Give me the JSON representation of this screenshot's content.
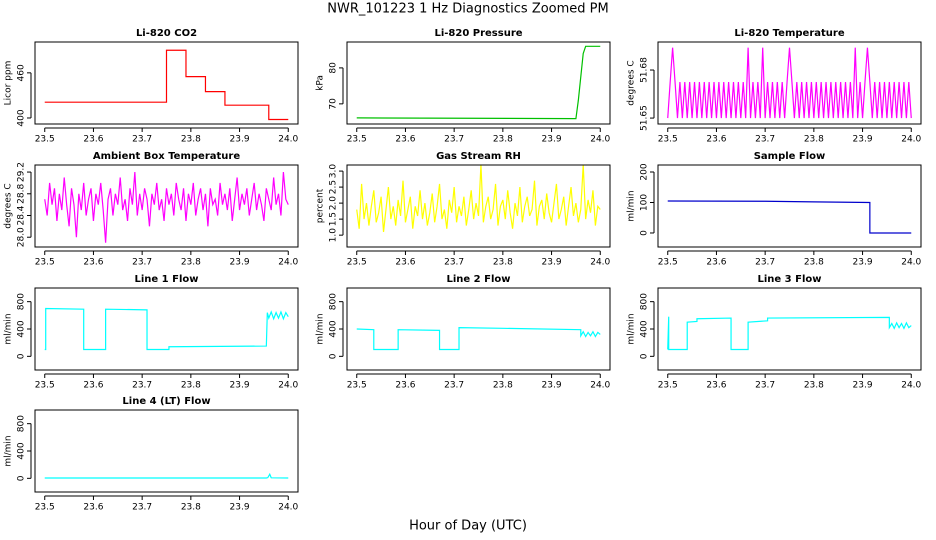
{
  "title": "NWR_101223  1 Hz Diagnostics Zoomed PM",
  "xlabel": "Hour of Day (UTC)",
  "chart_data": [
    {
      "type": "line",
      "title": "Li-820 CO2",
      "ylabel": "Licor ppm",
      "color": "#ff0000",
      "x": [
        23.5,
        23.75,
        23.75,
        23.79,
        23.79,
        23.83,
        23.83,
        23.87,
        23.87,
        23.96,
        23.96,
        24.0
      ],
      "values": [
        421,
        421,
        490,
        490,
        455,
        455,
        435,
        435,
        417,
        417,
        398,
        398
      ],
      "xlim": [
        23.48,
        24.02
      ],
      "ylim": [
        392,
        501
      ],
      "xticks": [
        23.5,
        23.6,
        23.7,
        23.8,
        23.9,
        {
          "value": 24,
          "label": "24.0"
        }
      ],
      "yticks": [
        400,
        460
      ]
    },
    {
      "type": "line",
      "title": "Li-820 Pressure",
      "ylabel": "kPa",
      "color": "#00c000",
      "x": [
        23.5,
        23.95,
        23.955,
        23.965,
        23.97,
        24.0
      ],
      "values": [
        66.1,
        65.9,
        71,
        84,
        86,
        86
      ],
      "xlim": [
        23.48,
        24.02
      ],
      "ylim": [
        64.4,
        87.2
      ],
      "xticks": [
        23.5,
        23.6,
        23.7,
        23.8,
        23.9,
        {
          "value": 24,
          "label": "24.0"
        }
      ],
      "yticks": [
        70,
        80
      ]
    },
    {
      "type": "line",
      "title": "Li-820 Temperature",
      "ylabel": "degrees C",
      "color": "#ff00ff",
      "x": [
        23.5,
        23.505,
        23.51,
        23.515,
        23.52,
        23.525,
        23.53,
        23.535,
        23.54,
        23.545,
        23.55,
        23.555,
        23.56,
        23.565,
        23.57,
        23.575,
        23.58,
        23.585,
        23.59,
        23.595,
        23.6,
        23.605,
        23.61,
        23.615,
        23.62,
        23.625,
        23.63,
        23.635,
        23.64,
        23.645,
        23.65,
        23.655,
        23.66,
        23.665,
        23.67,
        23.675,
        23.68,
        23.685,
        23.69,
        23.695,
        23.7,
        23.705,
        23.71,
        23.715,
        23.72,
        23.725,
        23.73,
        23.735,
        23.74,
        23.745,
        23.75,
        23.755,
        23.76,
        23.765,
        23.77,
        23.775,
        23.78,
        23.785,
        23.79,
        23.795,
        23.8,
        23.805,
        23.81,
        23.815,
        23.82,
        23.825,
        23.83,
        23.835,
        23.84,
        23.845,
        23.85,
        23.855,
        23.86,
        23.865,
        23.87,
        23.875,
        23.88,
        23.885,
        23.89,
        23.895,
        23.9,
        23.905,
        23.91,
        23.915,
        23.92,
        23.925,
        23.93,
        23.935,
        23.94,
        23.945,
        23.95,
        23.955,
        23.96,
        23.965,
        23.97,
        23.975,
        23.98,
        23.985,
        23.99,
        23.995,
        24.0
      ],
      "values": [
        51.65,
        51.6725,
        51.694,
        51.6725,
        51.65,
        51.6725,
        51.65,
        51.6725,
        51.65,
        51.6725,
        51.65,
        51.6725,
        51.65,
        51.6725,
        51.65,
        51.6725,
        51.65,
        51.6725,
        51.65,
        51.6725,
        51.65,
        51.6725,
        51.65,
        51.6725,
        51.65,
        51.6725,
        51.65,
        51.6725,
        51.65,
        51.6725,
        51.65,
        51.6725,
        51.65,
        51.694,
        51.65,
        51.6725,
        51.65,
        51.6725,
        51.65,
        51.694,
        51.65,
        51.6725,
        51.65,
        51.6725,
        51.65,
        51.6725,
        51.65,
        51.6725,
        51.65,
        51.6725,
        51.694,
        51.6725,
        51.65,
        51.6725,
        51.65,
        51.6725,
        51.65,
        51.6725,
        51.65,
        51.6725,
        51.65,
        51.6725,
        51.65,
        51.6725,
        51.65,
        51.6725,
        51.65,
        51.6725,
        51.65,
        51.6725,
        51.65,
        51.6725,
        51.65,
        51.6725,
        51.65,
        51.6725,
        51.65,
        51.694,
        51.65,
        51.6725,
        51.65,
        51.6725,
        51.694,
        51.6725,
        51.65,
        51.6725,
        51.65,
        51.6725,
        51.65,
        51.6725,
        51.65,
        51.6725,
        51.65,
        51.6725,
        51.65,
        51.6725,
        51.65,
        51.6725,
        51.65,
        51.6725,
        51.65
      ],
      "xlim": [
        23.48,
        24.02
      ],
      "ylim": [
        51.6463,
        51.6975
      ],
      "xticks": [
        23.5,
        23.6,
        23.7,
        23.8,
        23.9,
        {
          "value": 24,
          "label": "24.0"
        }
      ],
      "yticks": [
        51.65,
        51.68
      ]
    },
    {
      "type": "line",
      "title": "Ambient Box Temperature",
      "ylabel": "degrees C",
      "color": "#ff00ff",
      "x": [
        23.5,
        23.505,
        23.51,
        23.515,
        23.52,
        23.525,
        23.53,
        23.535,
        23.54,
        23.545,
        23.55,
        23.555,
        23.56,
        23.565,
        23.57,
        23.575,
        23.58,
        23.585,
        23.59,
        23.595,
        23.6,
        23.605,
        23.61,
        23.615,
        23.62,
        23.625,
        23.63,
        23.635,
        23.64,
        23.645,
        23.65,
        23.655,
        23.66,
        23.665,
        23.67,
        23.675,
        23.68,
        23.685,
        23.69,
        23.695,
        23.7,
        23.705,
        23.71,
        23.715,
        23.72,
        23.725,
        23.73,
        23.735,
        23.74,
        23.745,
        23.75,
        23.755,
        23.76,
        23.765,
        23.77,
        23.775,
        23.78,
        23.785,
        23.79,
        23.795,
        23.8,
        23.805,
        23.81,
        23.815,
        23.82,
        23.825,
        23.83,
        23.835,
        23.84,
        23.845,
        23.85,
        23.855,
        23.86,
        23.865,
        23.87,
        23.875,
        23.88,
        23.885,
        23.89,
        23.895,
        23.9,
        23.905,
        23.91,
        23.915,
        23.92,
        23.925,
        23.93,
        23.935,
        23.94,
        23.945,
        23.95,
        23.955,
        23.96,
        23.965,
        23.97,
        23.975,
        23.98,
        23.985,
        23.99,
        23.995,
        24.0
      ],
      "values": [
        28.7,
        28.4,
        29.0,
        28.6,
        28.9,
        28.3,
        28.8,
        28.5,
        29.1,
        28.6,
        28.2,
        28.9,
        28.6,
        28.0,
        28.8,
        28.5,
        29.0,
        28.4,
        28.7,
        28.9,
        28.3,
        28.8,
        28.6,
        29.0,
        28.5,
        27.9,
        28.7,
        28.9,
        28.4,
        28.8,
        28.6,
        29.1,
        28.5,
        28.7,
        28.3,
        28.9,
        28.6,
        29.2,
        28.4,
        28.8,
        28.5,
        28.9,
        28.7,
        28.2,
        28.8,
        28.6,
        29.0,
        28.5,
        28.7,
        28.3,
        28.9,
        28.6,
        28.8,
        28.4,
        29.0,
        28.7,
        28.5,
        28.9,
        28.3,
        28.8,
        28.6,
        29.0,
        28.4,
        28.7,
        28.9,
        28.5,
        28.8,
        28.2,
        28.9,
        28.6,
        28.7,
        28.4,
        29.0,
        28.6,
        28.8,
        28.5,
        28.9,
        28.3,
        28.7,
        29.1,
        28.5,
        28.8,
        28.6,
        28.9,
        28.4,
        28.7,
        29.0,
        28.5,
        28.8,
        28.6,
        28.3,
        28.9,
        28.7,
        28.5,
        29.1,
        28.6,
        28.8,
        28.4,
        29.2,
        28.7,
        28.6
      ],
      "xlim": [
        23.48,
        24.02
      ],
      "ylim": [
        27.82,
        29.33
      ],
      "xticks": [
        23.5,
        23.6,
        23.7,
        23.8,
        23.9,
        {
          "value": 24,
          "label": "24.0"
        }
      ],
      "yticks": [
        {
          "value": 28,
          "label": "28.0"
        },
        28.4,
        28.8,
        29.2
      ]
    },
    {
      "type": "line",
      "title": "Gas Stream RH",
      "ylabel": "percent",
      "color": "#ffff00",
      "x": [
        23.5,
        23.505,
        23.51,
        23.515,
        23.52,
        23.525,
        23.53,
        23.535,
        23.54,
        23.545,
        23.55,
        23.555,
        23.56,
        23.565,
        23.57,
        23.575,
        23.58,
        23.585,
        23.59,
        23.595,
        23.6,
        23.605,
        23.61,
        23.615,
        23.62,
        23.625,
        23.63,
        23.635,
        23.64,
        23.645,
        23.65,
        23.655,
        23.66,
        23.665,
        23.67,
        23.675,
        23.68,
        23.685,
        23.69,
        23.695,
        23.7,
        23.705,
        23.71,
        23.715,
        23.72,
        23.725,
        23.73,
        23.735,
        23.74,
        23.745,
        23.75,
        23.755,
        23.76,
        23.765,
        23.77,
        23.775,
        23.78,
        23.785,
        23.79,
        23.795,
        23.8,
        23.805,
        23.81,
        23.815,
        23.82,
        23.825,
        23.83,
        23.835,
        23.84,
        23.845,
        23.85,
        23.855,
        23.86,
        23.865,
        23.87,
        23.875,
        23.88,
        23.885,
        23.89,
        23.895,
        23.9,
        23.905,
        23.91,
        23.915,
        23.92,
        23.925,
        23.93,
        23.935,
        23.94,
        23.945,
        23.95,
        23.955,
        23.96,
        23.965,
        23.97,
        23.975,
        23.98,
        23.985,
        23.99,
        23.995,
        24.0
      ],
      "values": [
        1.8,
        1.2,
        2.6,
        1.5,
        2.0,
        1.3,
        1.9,
        2.4,
        1.4,
        1.7,
        2.2,
        1.1,
        1.8,
        2.5,
        1.5,
        1.9,
        1.3,
        2.1,
        1.6,
        2.7,
        1.4,
        1.8,
        2.2,
        1.2,
        1.9,
        1.6,
        2.4,
        1.5,
        2.0,
        1.3,
        1.7,
        2.3,
        1.4,
        1.9,
        2.6,
        1.5,
        1.8,
        1.2,
        2.1,
        1.7,
        2.5,
        1.4,
        1.9,
        1.6,
        2.2,
        1.3,
        1.8,
        2.4,
        1.5,
        2.0,
        1.6,
        3.2,
        1.4,
        1.9,
        2.2,
        1.5,
        1.8,
        2.6,
        1.3,
        1.9,
        2.1,
        1.5,
        2.4,
        1.7,
        1.2,
        2.0,
        1.6,
        2.5,
        1.4,
        1.9,
        2.2,
        1.6,
        1.8,
        2.7,
        1.3,
        1.9,
        2.1,
        1.5,
        2.3,
        1.7,
        1.4,
        2.0,
        2.6,
        1.5,
        1.8,
        2.2,
        1.3,
        1.9,
        2.5,
        1.6,
        2.0,
        1.4,
        1.8,
        3.2,
        1.5,
        2.1,
        1.7,
        2.4,
        1.3,
        1.9,
        1.8
      ],
      "xlim": [
        23.48,
        24.02
      ],
      "ylim": [
        0.63,
        3.19
      ],
      "xticks": [
        23.5,
        23.6,
        23.7,
        23.8,
        23.9,
        {
          "value": 24,
          "label": "24.0"
        }
      ],
      "yticks": [
        {
          "value": 1,
          "label": "1.0"
        },
        1.5,
        {
          "value": 2,
          "label": "2.0"
        },
        2.5,
        {
          "value": 3,
          "label": "3.0"
        }
      ]
    },
    {
      "type": "line",
      "title": "Sample Flow",
      "ylabel": "ml/min",
      "color": "#0000cc",
      "x": [
        23.5,
        23.7,
        23.8,
        23.915,
        23.915,
        24.0
      ],
      "values": [
        105,
        104,
        102,
        100,
        0,
        0
      ],
      "xlim": [
        23.48,
        24.02
      ],
      "ylim": [
        -46,
        223
      ],
      "xticks": [
        23.5,
        23.6,
        23.7,
        23.8,
        23.9,
        {
          "value": 24,
          "label": "24.0"
        }
      ],
      "yticks": [
        0,
        100,
        200
      ]
    },
    {
      "type": "line",
      "title": "Line 1 Flow",
      "ylabel": "ml/min",
      "color": "#00ffff",
      "x": [
        23.5,
        23.502,
        23.502,
        23.58,
        23.58,
        23.625,
        23.625,
        23.71,
        23.71,
        23.755,
        23.755,
        23.955,
        23.957,
        23.96,
        23.965,
        23.97,
        23.975,
        23.98,
        23.985,
        23.99,
        23.995,
        24.0
      ],
      "values": [
        100,
        100,
        700,
        690,
        100,
        100,
        690,
        680,
        100,
        100,
        140,
        150,
        640,
        560,
        650,
        550,
        640,
        560,
        650,
        550,
        640,
        580
      ],
      "xlim": [
        23.48,
        24.02
      ],
      "ylim": [
        -200,
        1000
      ],
      "xticks": [
        23.5,
        23.6,
        23.7,
        23.8,
        23.9,
        {
          "value": 24,
          "label": "24.0"
        }
      ],
      "yticks": [
        0,
        400,
        800
      ]
    },
    {
      "type": "line",
      "title": "Line 2 Flow",
      "ylabel": "ml/min",
      "color": "#00ffff",
      "x": [
        23.5,
        23.535,
        23.535,
        23.585,
        23.585,
        23.67,
        23.67,
        23.71,
        23.71,
        23.8,
        23.96,
        23.96,
        23.965,
        23.97,
        23.975,
        23.98,
        23.985,
        23.99,
        23.995,
        24.0
      ],
      "values": [
        400,
        390,
        100,
        100,
        390,
        380,
        100,
        100,
        420,
        410,
        390,
        300,
        360,
        290,
        350,
        300,
        360,
        290,
        350,
        320
      ],
      "xlim": [
        23.48,
        24.02
      ],
      "ylim": [
        -200,
        1000
      ],
      "xticks": [
        23.5,
        23.6,
        23.7,
        23.8,
        23.9,
        {
          "value": 24,
          "label": "24.0"
        }
      ],
      "yticks": [
        0,
        400,
        800
      ]
    },
    {
      "type": "line",
      "title": "Line 3 Flow",
      "ylabel": "ml/min",
      "color": "#00ffff",
      "x": [
        23.5,
        23.502,
        23.502,
        23.54,
        23.54,
        23.56,
        23.56,
        23.63,
        23.63,
        23.665,
        23.665,
        23.705,
        23.705,
        23.955,
        23.955,
        23.96,
        23.965,
        23.97,
        23.975,
        23.98,
        23.985,
        23.99,
        23.995,
        24.0
      ],
      "values": [
        100,
        580,
        100,
        100,
        500,
        510,
        550,
        560,
        100,
        100,
        500,
        520,
        560,
        570,
        420,
        480,
        410,
        490,
        420,
        480,
        410,
        490,
        420,
        450
      ],
      "xlim": [
        23.48,
        24.02
      ],
      "ylim": [
        -200,
        1000
      ],
      "xticks": [
        23.5,
        23.6,
        23.7,
        23.8,
        23.9,
        {
          "value": 24,
          "label": "24.0"
        }
      ],
      "yticks": [
        0,
        400,
        800
      ]
    },
    {
      "type": "line",
      "title": "Line 4 (LT) Flow",
      "ylabel": "ml/min",
      "color": "#00ffff",
      "x": [
        23.5,
        23.955,
        23.958,
        23.962,
        23.965,
        24.0
      ],
      "values": [
        5,
        5,
        10,
        60,
        8,
        5
      ],
      "xlim": [
        23.48,
        24.02
      ],
      "ylim": [
        -200,
        1000
      ],
      "xticks": [
        23.5,
        23.6,
        23.7,
        23.8,
        23.9,
        {
          "value": 24,
          "label": "24.0"
        }
      ],
      "yticks": [
        0,
        400,
        800
      ]
    }
  ]
}
